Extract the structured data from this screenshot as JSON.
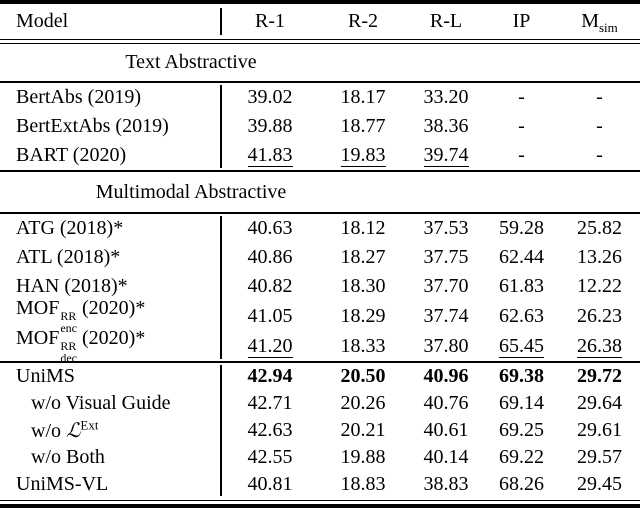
{
  "header": {
    "model_label": "Model",
    "col1": "R-1",
    "col2": "R-2",
    "col3": "R-L",
    "col4": "IP",
    "col5_base": "M",
    "col5_sub": "sim"
  },
  "section_titles": {
    "text_abstractive": "Text Abstractive",
    "multimodal_abstractive": "Multimodal Abstractive"
  },
  "groups": [
    [
      {
        "model": "BertAbs (2019)",
        "r1": "39.02",
        "r2": "18.17",
        "rl": "33.20",
        "ip": "-",
        "msim": "-"
      },
      {
        "model": "BertExtAbs (2019)",
        "r1": "39.88",
        "r2": "18.77",
        "rl": "38.36",
        "ip": "-",
        "msim": "-"
      },
      {
        "model": "BART (2020)",
        "r1": "41.83",
        "r2": "19.83",
        "rl": "39.74",
        "ip": "-",
        "msim": "-"
      }
    ],
    [
      {
        "model": "ATG (2018)*",
        "r1": "40.63",
        "r2": "18.12",
        "rl": "37.53",
        "ip": "59.28",
        "msim": "25.82"
      },
      {
        "model": "ATL (2018)*",
        "r1": "40.86",
        "r2": "18.27",
        "rl": "37.75",
        "ip": "62.44",
        "msim": "13.26"
      },
      {
        "model": "HAN (2018)*",
        "r1": "40.82",
        "r2": "18.30",
        "rl": "37.70",
        "ip": "61.83",
        "msim": "12.22"
      },
      {
        "model_base": "MOF",
        "model_sup": "RR",
        "model_sub": "enc",
        "model_rest": " (2020)*",
        "r1": "41.05",
        "r2": "18.29",
        "rl": "37.74",
        "ip": "62.63",
        "msim": "26.23"
      },
      {
        "model_base": "MOF",
        "model_sup": "RR",
        "model_sub": "dec",
        "model_rest": " (2020)*",
        "r1": "41.20",
        "r2": "18.33",
        "rl": "37.80",
        "ip": "65.45",
        "msim": "26.38"
      }
    ],
    [
      {
        "model": "UniMS",
        "r1": "42.94",
        "r2": "20.50",
        "rl": "40.96",
        "ip": "69.38",
        "msim": "29.72"
      },
      {
        "model": "w/o Visual Guide",
        "r1": "42.71",
        "r2": "20.26",
        "rl": "40.76",
        "ip": "69.14",
        "msim": "29.64"
      },
      {
        "model_pre": "w/o ",
        "model_base": "ℒ",
        "model_sup": "Ext",
        "r1": "42.63",
        "r2": "20.21",
        "rl": "40.61",
        "ip": "69.25",
        "msim": "29.61"
      },
      {
        "model": "w/o Both",
        "r1": "42.55",
        "r2": "19.88",
        "rl": "40.14",
        "ip": "69.22",
        "msim": "29.57"
      },
      {
        "model": "UniMS-VL",
        "r1": "40.81",
        "r2": "18.83",
        "rl": "38.83",
        "ip": "68.26",
        "msim": "29.45"
      }
    ]
  ]
}
